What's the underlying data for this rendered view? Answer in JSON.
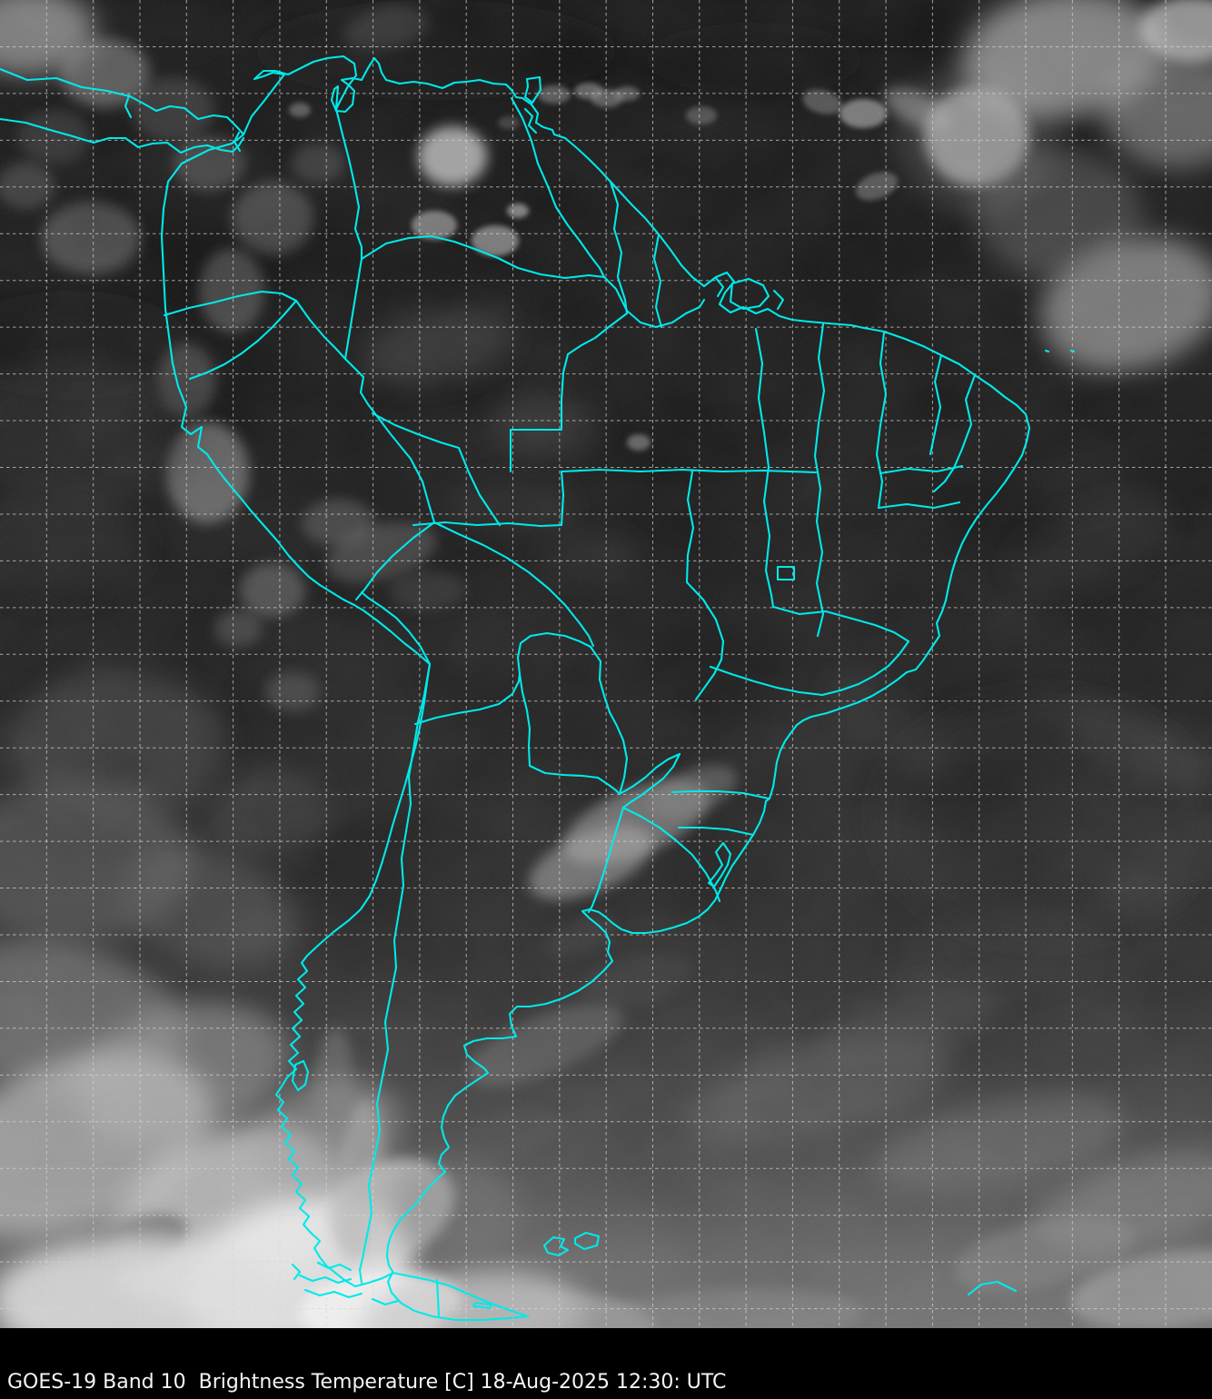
{
  "caption": {
    "full_text": "GOES-19 Band 10  Brightness Temperature [C] 18-Aug-2025 12:30: UTC",
    "satellite": "GOES-19",
    "band": "Band 10",
    "product": "Brightness Temperature",
    "units": "[C]",
    "datetime": "18-Aug-2025 12:30: UTC"
  },
  "colors": {
    "border_cyan": "#00e9e9",
    "grid_line": "#d6d6d6",
    "background": "#000000",
    "caption_bg": "#000000",
    "caption_text": "#f5f5f5"
  },
  "image": {
    "kind": "infrared satellite scene",
    "region_shown": "South America",
    "overlays": [
      "country and state borders",
      "dashed latitude-longitude grid"
    ]
  }
}
